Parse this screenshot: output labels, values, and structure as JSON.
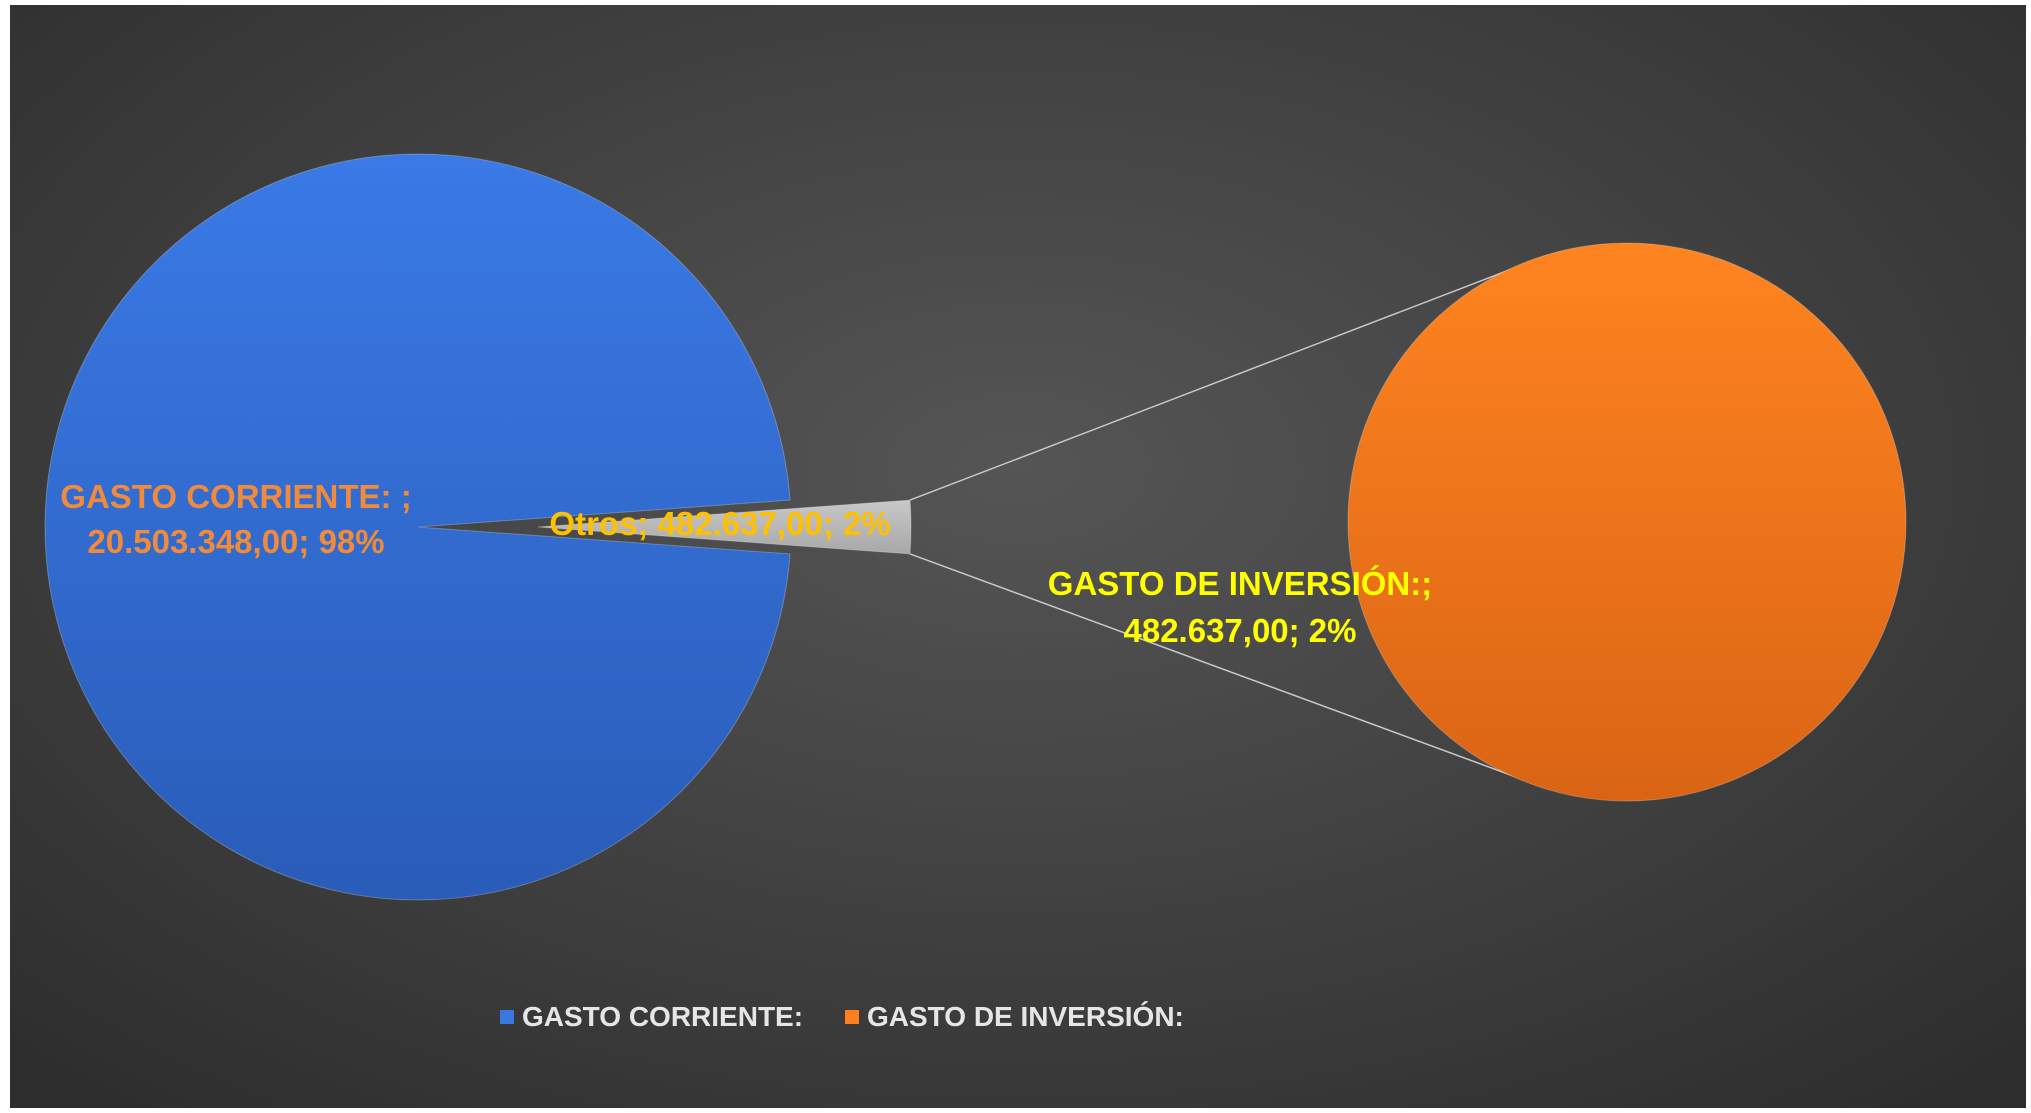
{
  "chart_data": {
    "type": "pie",
    "subtype": "pie-of-pie",
    "title": "",
    "slices": [
      {
        "name": "GASTO CORRIENTE:",
        "value": 20503348.0,
        "percent": 98,
        "color": "#3a78e0",
        "label_line1": "GASTO CORRIENTE: ;",
        "label_line2": "20.503.348,00; 98%",
        "label_color": "#f08a3c"
      },
      {
        "name": "Otros",
        "value": 482637.0,
        "percent": 2,
        "color": "#b9b9b9",
        "label_line1": "Otros; 482.637,00; 2%",
        "label_color": "#ffc000"
      }
    ],
    "secondary_pie": [
      {
        "name": "GASTO DE INVERSIÓN:",
        "value": 482637.0,
        "percent": 2,
        "color": "#ff7f1f",
        "label_line1": "GASTO DE INVERSIÓN:;",
        "label_line2": "482.637,00; 2%",
        "label_color": "#ffff00"
      }
    ],
    "legend": {
      "position": "bottom",
      "items": [
        {
          "label": "GASTO CORRIENTE:",
          "color": "#3a78e0"
        },
        {
          "label": "GASTO DE INVERSIÓN:",
          "color": "#ff7f1f"
        }
      ]
    },
    "background": "#444444"
  }
}
